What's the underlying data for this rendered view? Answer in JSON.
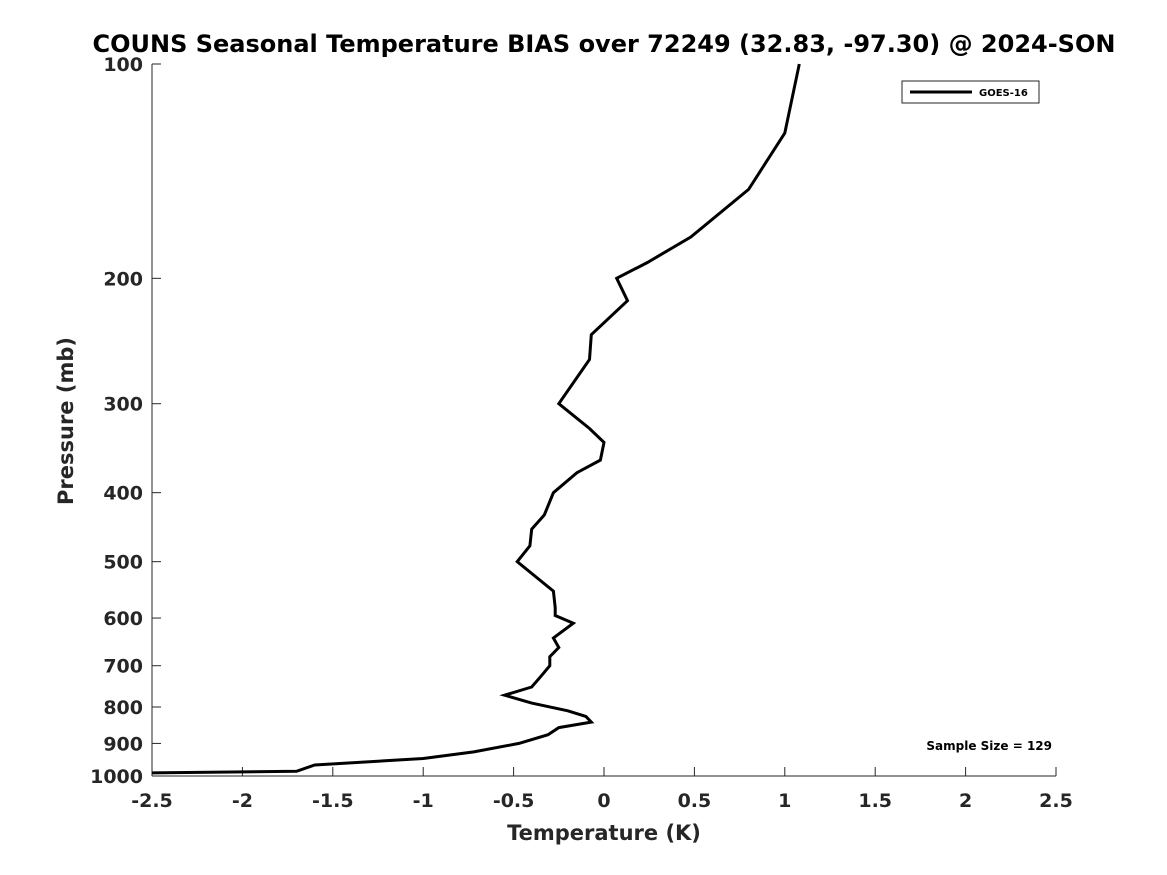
{
  "chart_data": {
    "type": "line",
    "title": "COUNS Seasonal Temperature BIAS over 72249 (32.83, -97.30) @ 2024-SON",
    "xlabel": "Temperature (K)",
    "ylabel": "Pressure (mb)",
    "xlim": [
      -2.5,
      2.5
    ],
    "ylim": [
      100,
      1000
    ],
    "yscale": "log",
    "y_reversed": true,
    "grid": false,
    "legend_position": "top-right",
    "x_ticks": [
      -2.5,
      -2,
      -1.5,
      -1,
      -0.5,
      0,
      0.5,
      1,
      1.5,
      2,
      2.5
    ],
    "x_tick_labels": [
      "-2.5",
      "-2",
      "-1.5",
      "-1",
      "-0.5",
      "0",
      "0.5",
      "1",
      "1.5",
      "2",
      "2.5"
    ],
    "y_ticks": [
      100,
      200,
      300,
      400,
      500,
      600,
      700,
      800,
      900,
      1000
    ],
    "y_tick_labels": [
      "100",
      "200",
      "300",
      "400",
      "500",
      "600",
      "700",
      "800",
      "900",
      "1000"
    ],
    "series": [
      {
        "name": "GOES-16",
        "color": "#000000",
        "points": [
          [
            1.08,
            100
          ],
          [
            1.0,
            125
          ],
          [
            0.8,
            150
          ],
          [
            0.48,
            175
          ],
          [
            0.24,
            190
          ],
          [
            0.07,
            200
          ],
          [
            0.13,
            215
          ],
          [
            -0.07,
            240
          ],
          [
            -0.08,
            260
          ],
          [
            -0.25,
            300
          ],
          [
            -0.08,
            325
          ],
          [
            0.0,
            340
          ],
          [
            -0.02,
            360
          ],
          [
            -0.15,
            375
          ],
          [
            -0.28,
            400
          ],
          [
            -0.33,
            430
          ],
          [
            -0.4,
            450
          ],
          [
            -0.41,
            475
          ],
          [
            -0.48,
            500
          ],
          [
            -0.28,
            550
          ],
          [
            -0.27,
            580
          ],
          [
            -0.27,
            595
          ],
          [
            -0.17,
            610
          ],
          [
            -0.28,
            640
          ],
          [
            -0.25,
            660
          ],
          [
            -0.3,
            680
          ],
          [
            -0.3,
            700
          ],
          [
            -0.35,
            725
          ],
          [
            -0.4,
            750
          ],
          [
            -0.55,
            770
          ],
          [
            -0.4,
            790
          ],
          [
            -0.2,
            810
          ],
          [
            -0.1,
            825
          ],
          [
            -0.07,
            840
          ],
          [
            -0.25,
            855
          ],
          [
            -0.31,
            875
          ],
          [
            -0.47,
            900
          ],
          [
            -0.72,
            925
          ],
          [
            -1.0,
            945
          ],
          [
            -1.6,
            965
          ],
          [
            -1.7,
            985
          ],
          [
            -2.5,
            990
          ]
        ]
      }
    ],
    "annotation": "Sample Size = 129"
  }
}
